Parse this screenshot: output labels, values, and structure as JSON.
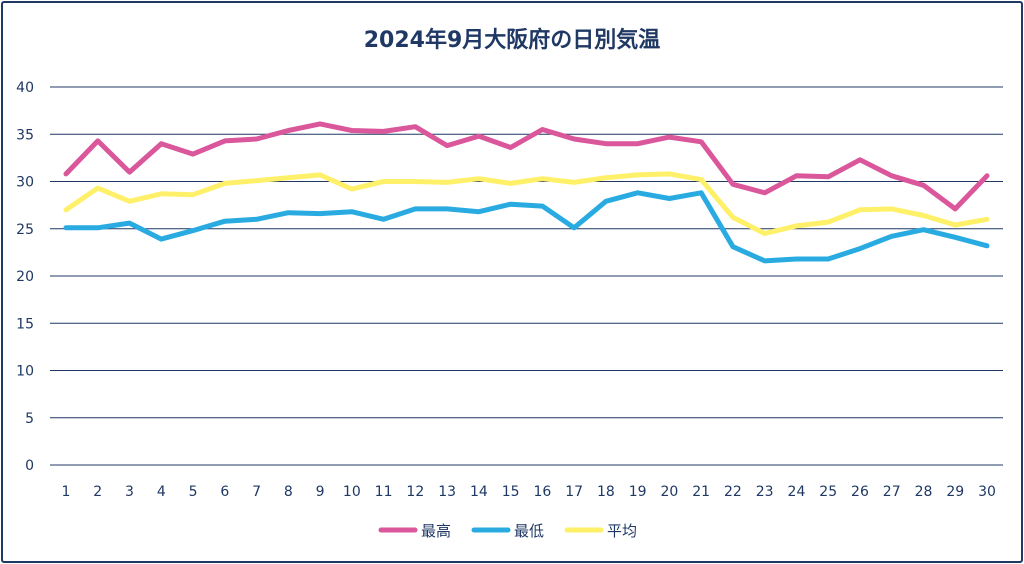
{
  "chart_data": {
    "type": "line",
    "title": "2024年9月大阪府の日別気温",
    "xlabel": "",
    "ylabel": "",
    "ylim": [
      0,
      40
    ],
    "yticks": [
      0,
      5,
      10,
      15,
      20,
      25,
      30,
      35,
      40
    ],
    "grid": true,
    "legend_position": "bottom",
    "x": [
      "1",
      "2",
      "3",
      "4",
      "5",
      "6",
      "7",
      "8",
      "9",
      "10",
      "11",
      "12",
      "13",
      "14",
      "15",
      "16",
      "17",
      "18",
      "19",
      "20",
      "21",
      "22",
      "23",
      "24",
      "25",
      "26",
      "27",
      "28",
      "29",
      "30"
    ],
    "series": [
      {
        "name": "最高",
        "color": "#d9579a",
        "values": [
          30.8,
          34.3,
          31.0,
          34.0,
          32.9,
          34.3,
          34.5,
          35.4,
          36.1,
          35.4,
          35.3,
          35.8,
          33.8,
          34.8,
          33.6,
          35.5,
          34.5,
          34.0,
          34.0,
          34.7,
          34.2,
          29.7,
          28.8,
          30.6,
          30.5,
          32.3,
          30.6,
          29.6,
          27.1,
          30.6
        ]
      },
      {
        "name": "最低",
        "color": "#29abe2",
        "values": [
          25.1,
          25.1,
          25.6,
          23.9,
          24.8,
          25.8,
          26.0,
          26.7,
          26.6,
          26.8,
          26.0,
          27.1,
          27.1,
          26.8,
          27.6,
          27.4,
          25.1,
          27.9,
          28.8,
          28.2,
          28.8,
          23.1,
          21.6,
          21.8,
          21.8,
          22.9,
          24.2,
          24.9,
          24.1,
          23.2
        ]
      },
      {
        "name": "平均",
        "color": "#fff06a",
        "values": [
          27.0,
          29.3,
          27.9,
          28.7,
          28.6,
          29.8,
          30.1,
          30.4,
          30.7,
          29.2,
          30.0,
          30.0,
          29.9,
          30.3,
          29.8,
          30.3,
          29.9,
          30.4,
          30.7,
          30.8,
          30.2,
          26.2,
          24.5,
          25.3,
          25.7,
          27.0,
          27.1,
          26.4,
          25.4,
          26.0
        ]
      }
    ]
  }
}
